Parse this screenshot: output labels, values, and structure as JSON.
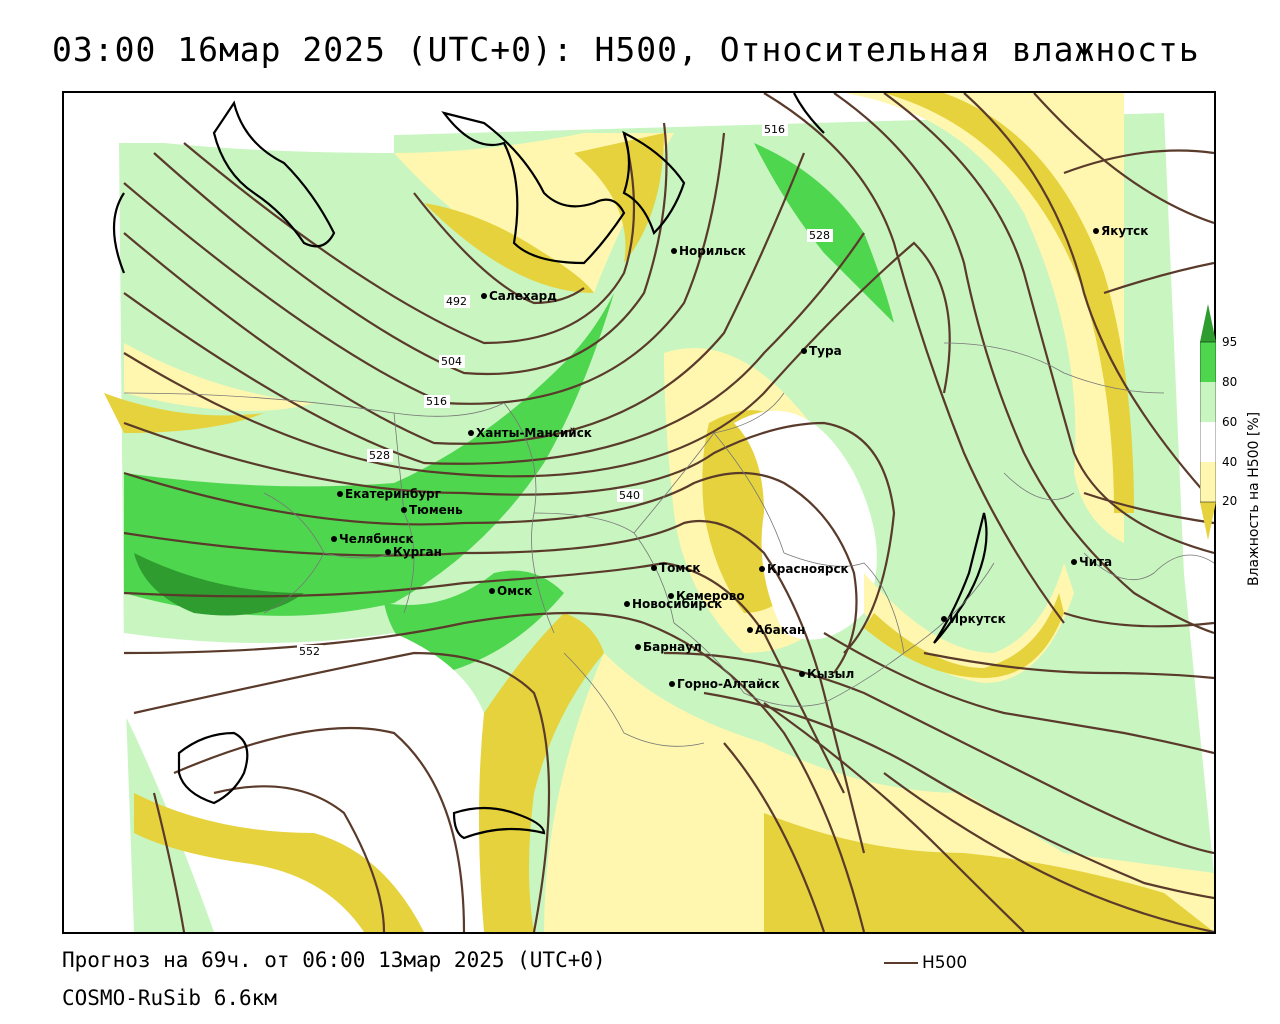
{
  "title": "03:00 16мар 2025 (UTC+0): H500, Относительная влажность",
  "footer": {
    "forecast": "Прогноз на 69ч. от 06:00 13мар 2025 (UTC+0)",
    "model": "COSMO-RuSib 6.6км",
    "legend_label": "H500"
  },
  "colorbar": {
    "label": "Влажность на H500 [%]",
    "ticks": [
      "95",
      "80",
      "60",
      "40",
      "20"
    ],
    "colors": [
      "#2e9c2e",
      "#4fd64f",
      "#c8f5c0",
      "#ffffff",
      "#fff7b0",
      "#e6d23c"
    ]
  },
  "colors": {
    "isohypse": "#5a3a2a",
    "dry": "#e6d23c",
    "dry_light": "#fff7b0",
    "moist": "#c8f5c0",
    "wet": "#4fd64f",
    "very_wet": "#2e9c2e",
    "border": "#000000"
  },
  "isohypse_labels": [
    "492",
    "504",
    "516",
    "528",
    "540",
    "552",
    "516",
    "528"
  ],
  "cities": [
    {
      "name": "Салехард"
    },
    {
      "name": "Норильск"
    },
    {
      "name": "Якутск"
    },
    {
      "name": "Тура"
    },
    {
      "name": "Ханты-Мансийск"
    },
    {
      "name": "Екатеринбург"
    },
    {
      "name": "Тюмень"
    },
    {
      "name": "Челябинск"
    },
    {
      "name": "Курган"
    },
    {
      "name": "Омск"
    },
    {
      "name": "Новосибирск"
    },
    {
      "name": "Томск"
    },
    {
      "name": "Кемерово"
    },
    {
      "name": "Красноярск"
    },
    {
      "name": "Барнаул"
    },
    {
      "name": "Абакан"
    },
    {
      "name": "Кызыл"
    },
    {
      "name": "Горно-Алтайск"
    },
    {
      "name": "Иркутск"
    },
    {
      "name": "Чита"
    }
  ]
}
